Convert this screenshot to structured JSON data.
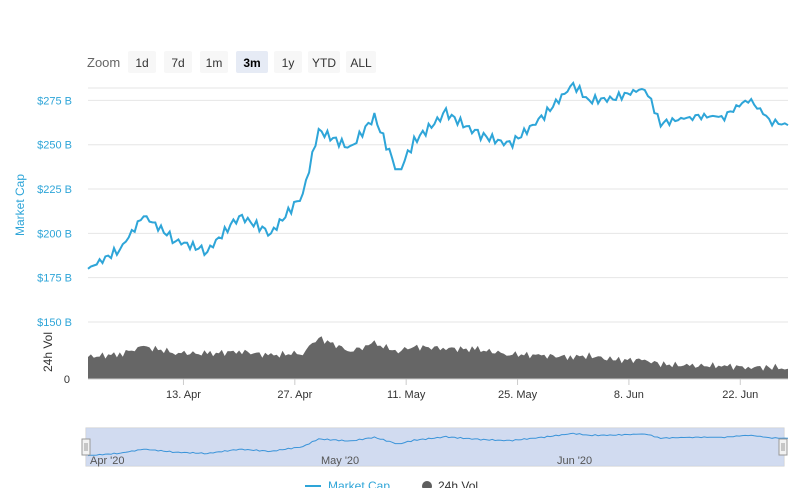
{
  "title": "",
  "zoom": {
    "label": "Zoom",
    "buttons": [
      "1d",
      "7d",
      "1m",
      "3m",
      "1y",
      "YTD",
      "ALL"
    ],
    "selected": "3m"
  },
  "colors": {
    "market_cap": "#2ea5d8",
    "volume": "#5e5e5e",
    "navigator_bg": "#c9d5ed",
    "navigator_line": "#3b94d9"
  },
  "chart_data": {
    "type": "line",
    "x_ticks": [
      "13. Apr",
      "27. Apr",
      "11. May",
      "25. May",
      "8. Jun",
      "22. Jun"
    ],
    "x": [
      "2020-04-01",
      "2020-04-05",
      "2020-04-08",
      "2020-04-12",
      "2020-04-16",
      "2020-04-20",
      "2020-04-24",
      "2020-04-28",
      "2020-04-30",
      "2020-05-04",
      "2020-05-07",
      "2020-05-10",
      "2020-05-12",
      "2020-05-16",
      "2020-05-20",
      "2020-05-24",
      "2020-05-28",
      "2020-06-01",
      "2020-06-03",
      "2020-06-06",
      "2020-06-10",
      "2020-06-12",
      "2020-06-16",
      "2020-06-20",
      "2020-06-23",
      "2020-06-26",
      "2020-06-28"
    ],
    "series": [
      {
        "name": "Market Cap",
        "y_title": "Market Cap",
        "y_ticks": [
          "$150 B",
          "$175 B",
          "$200 B",
          "$225 B",
          "$250 B",
          "$275 B"
        ],
        "ylim": [
          150,
          282
        ],
        "values": [
          180,
          191,
          210,
          196,
          190,
          210,
          200,
          222,
          258,
          248,
          266,
          234,
          252,
          268,
          256,
          250,
          265,
          284,
          275,
          276,
          282,
          262,
          266,
          266,
          276,
          263,
          261
        ]
      },
      {
        "name": "24h Vol",
        "y_title": "24h Vol",
        "y_ticks": [
          "0"
        ],
        "values": [
          15,
          17,
          22,
          18,
          17,
          19,
          16,
          18,
          28,
          19,
          24,
          19,
          22,
          21,
          20,
          17,
          16,
          15,
          16,
          13,
          13,
          10,
          9,
          9,
          8,
          8,
          7
        ]
      }
    ],
    "legend": [
      "Market Cap",
      "24h Vol"
    ],
    "navigator_labels": [
      "Apr '20",
      "May '20",
      "Jun '20"
    ]
  }
}
